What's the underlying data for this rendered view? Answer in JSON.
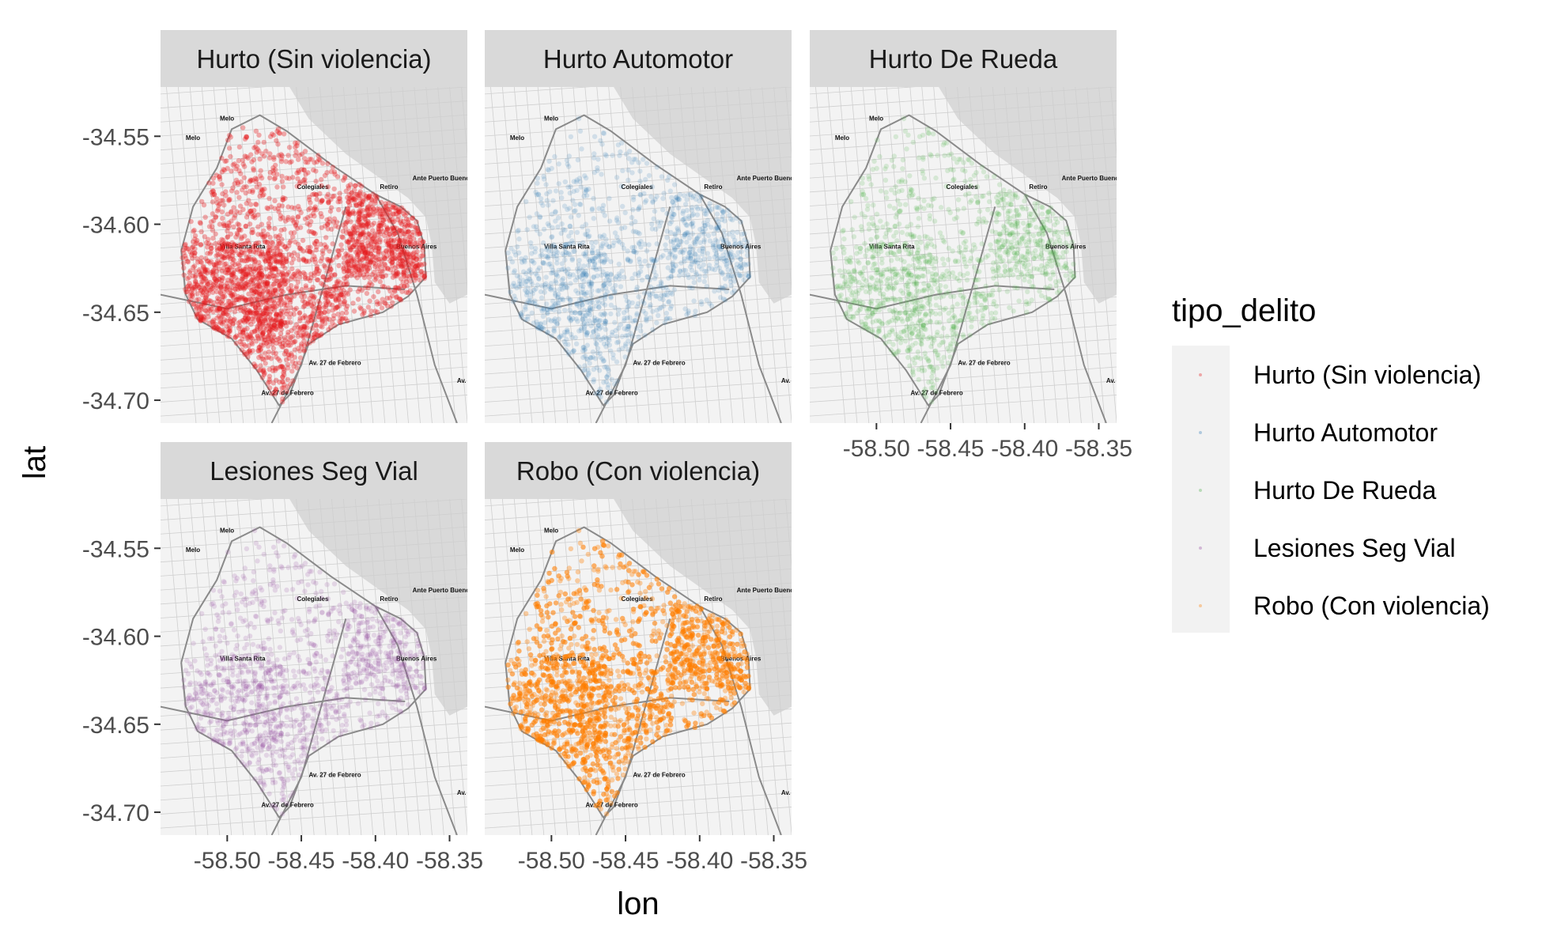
{
  "chart_data": {
    "type": "scatter",
    "title": "",
    "xlabel": "lon",
    "ylabel": "lat",
    "xlim": [
      -58.545,
      -58.338
    ],
    "ylim": [
      -34.713,
      -34.522
    ],
    "x_ticks": [
      -58.5,
      -58.45,
      -58.4,
      -58.35
    ],
    "x_tick_labels": [
      "-58.50",
      "-58.45",
      "-58.40",
      "-58.35"
    ],
    "y_ticks": [
      -34.55,
      -34.6,
      -34.65,
      -34.7
    ],
    "y_tick_labels": [
      "-34.55",
      "-34.60",
      "-34.65",
      "-34.70"
    ],
    "legend": {
      "title": "tipo_delito",
      "placement": "right",
      "entries": [
        "Hurto (Sin violencia)",
        "Hurto Automotor",
        "Hurto De Rueda",
        "Lesiones Seg Vial",
        "Robo (Con violencia)"
      ]
    },
    "panels": [
      {
        "name": "Hurto (Sin violencia)",
        "color": "#E41A1C",
        "density": "very high"
      },
      {
        "name": "Hurto Automotor",
        "color": "#377EB8",
        "density": "medium"
      },
      {
        "name": "Hurto De Rueda",
        "color": "#4DAF4A",
        "density": "medium"
      },
      {
        "name": "Lesiones Seg Vial",
        "color": "#984EA3",
        "density": "medium"
      },
      {
        "name": "Robo (Con violencia)",
        "color": "#FF7F00",
        "density": "very high"
      }
    ],
    "basemap_labels": [
      "Melo",
      "Melo",
      "Colegiales",
      "Retiro",
      "Villa Santa Rita",
      "Buenos Aires",
      "Av. 27 de Febrero",
      "Av. 27 de Febrero",
      "Ante Puerto Buenos Aires",
      "Av. Barto"
    ],
    "grid": false
  }
}
